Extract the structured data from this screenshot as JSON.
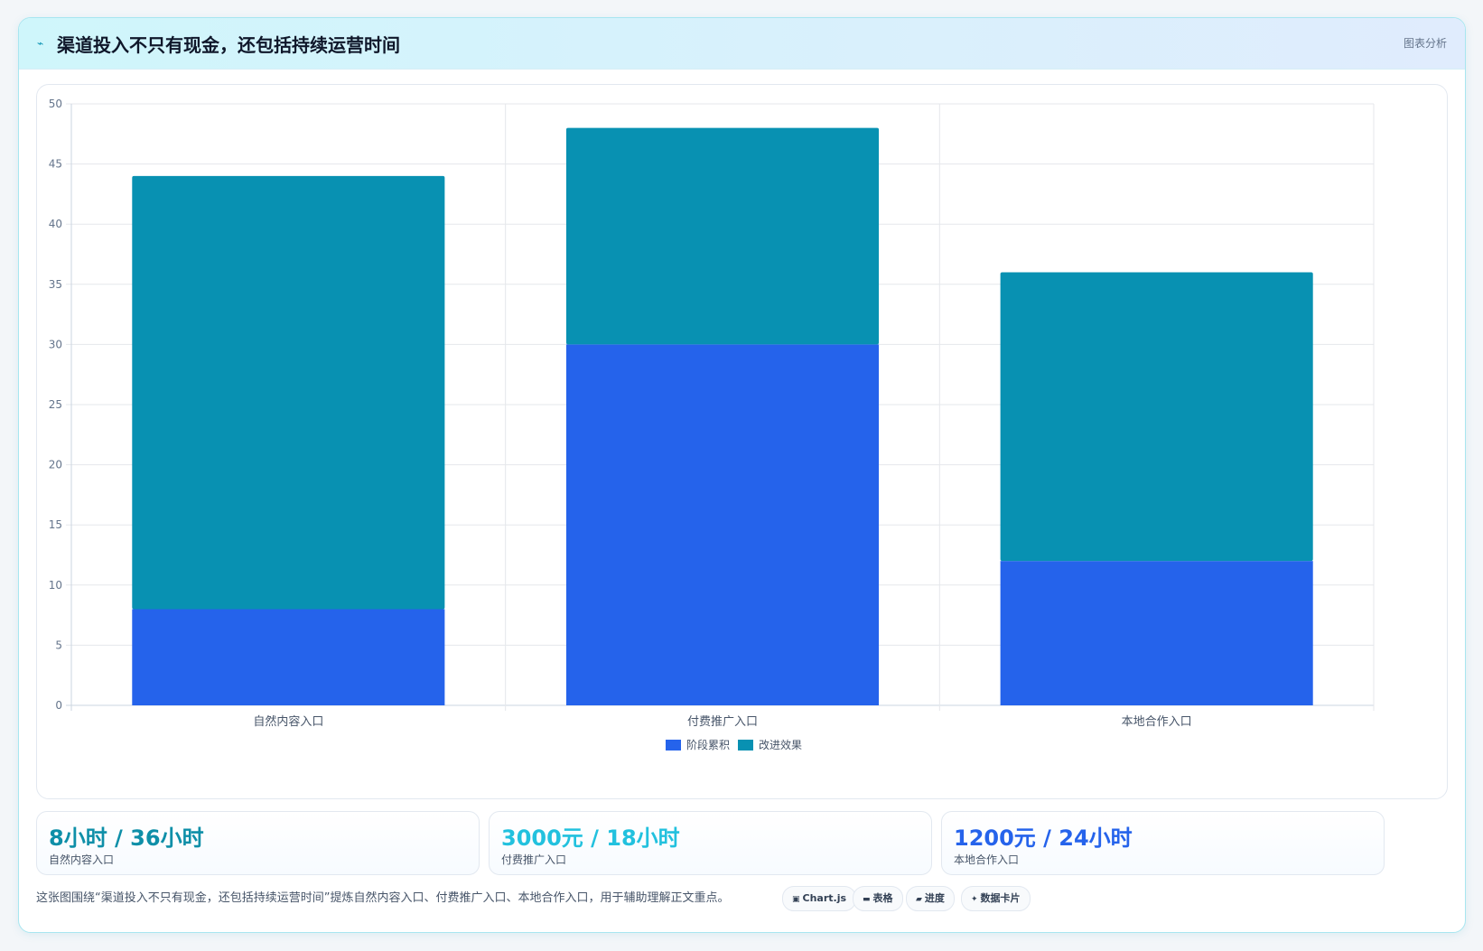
{
  "header": {
    "title": "渠道投入不只有现金，还包括持续运营时间",
    "tag": "图表分析",
    "icon": "zigzag-icon"
  },
  "chart_data": {
    "type": "bar",
    "stacked": true,
    "categories": [
      "自然内容入口",
      "付费推广入口",
      "本地合作入口"
    ],
    "series": [
      {
        "name": "阶段累积",
        "color": "#2563eb",
        "values": [
          8,
          30,
          12
        ]
      },
      {
        "name": "改进效果",
        "color": "#0891b2",
        "values": [
          36,
          18,
          24
        ]
      }
    ],
    "ylim": [
      0,
      50
    ],
    "yticks": [
      0,
      5,
      10,
      15,
      20,
      25,
      30,
      35,
      40,
      45,
      50
    ],
    "grid": true,
    "legend": "bottom-center",
    "title": "",
    "xlabel": "",
    "ylabel": ""
  },
  "stats": [
    {
      "value": "8小时 / 36小时",
      "label": "自然内容入口",
      "color": "#0e8fa8"
    },
    {
      "value": "3000元 / 18小时",
      "label": "付费推广入口",
      "color": "#22c1de"
    },
    {
      "value": "1200元 / 24小时",
      "label": "本地合作入口",
      "color": "#2563eb"
    }
  ],
  "caption": "这张图围绕“渠道投入不只有现金，还包括持续运营时间”提炼自然内容入口、付费推广入口、本地合作入口，用于辅助理解正文重点。",
  "pills": [
    {
      "label": "Chart.js",
      "icon": "chart-icon",
      "glyph": "▣"
    },
    {
      "label": "表格",
      "icon": "table-icon",
      "glyph": "▬"
    },
    {
      "label": "进度",
      "icon": "progress-icon",
      "glyph": "▰"
    },
    {
      "label": "数据卡片",
      "icon": "sparkle-icon",
      "glyph": "✦"
    }
  ]
}
